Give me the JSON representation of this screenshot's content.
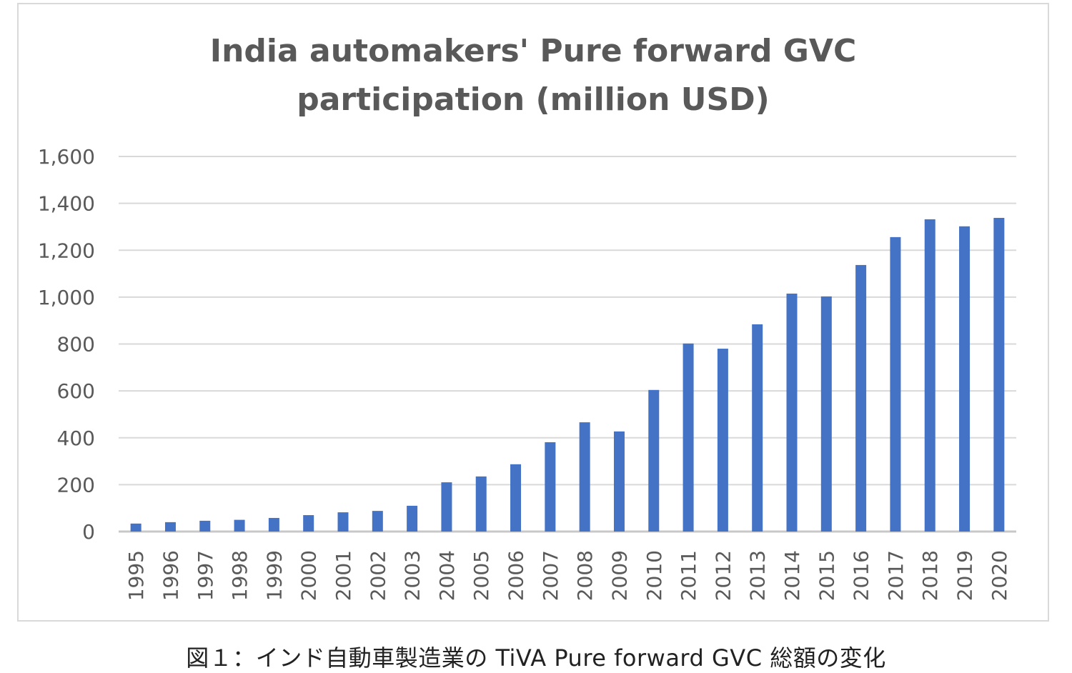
{
  "chart_data": {
    "type": "bar",
    "title_lines": [
      "India automakers' Pure forward GVC",
      "participation (million USD)"
    ],
    "xlabel": "",
    "ylabel": "",
    "ylim": [
      0,
      1600
    ],
    "yticks": [
      0,
      200,
      400,
      600,
      800,
      1000,
      1200,
      1400,
      1600
    ],
    "ytick_labels": [
      "0",
      "200",
      "400",
      "600",
      "800",
      "1,000",
      "1,200",
      "1,400",
      "1,600"
    ],
    "grid": true,
    "legend": "none",
    "categories": [
      "1995",
      "1996",
      "1997",
      "1998",
      "1999",
      "2000",
      "2001",
      "2002",
      "2003",
      "2004",
      "2005",
      "2006",
      "2007",
      "2008",
      "2009",
      "2010",
      "2011",
      "2012",
      "2013",
      "2014",
      "2015",
      "2016",
      "2017",
      "2018",
      "2019",
      "2020"
    ],
    "values": [
      34,
      40,
      46,
      50,
      58,
      70,
      82,
      88,
      110,
      210,
      235,
      287,
      381,
      466,
      427,
      604,
      802,
      780,
      884,
      1015,
      1003,
      1137,
      1256,
      1332,
      1302,
      1338
    ],
    "bar_color": "#4472c4"
  },
  "caption": "図１：インド自動車製造業の TiVA Pure forward GVC 総額の変化"
}
